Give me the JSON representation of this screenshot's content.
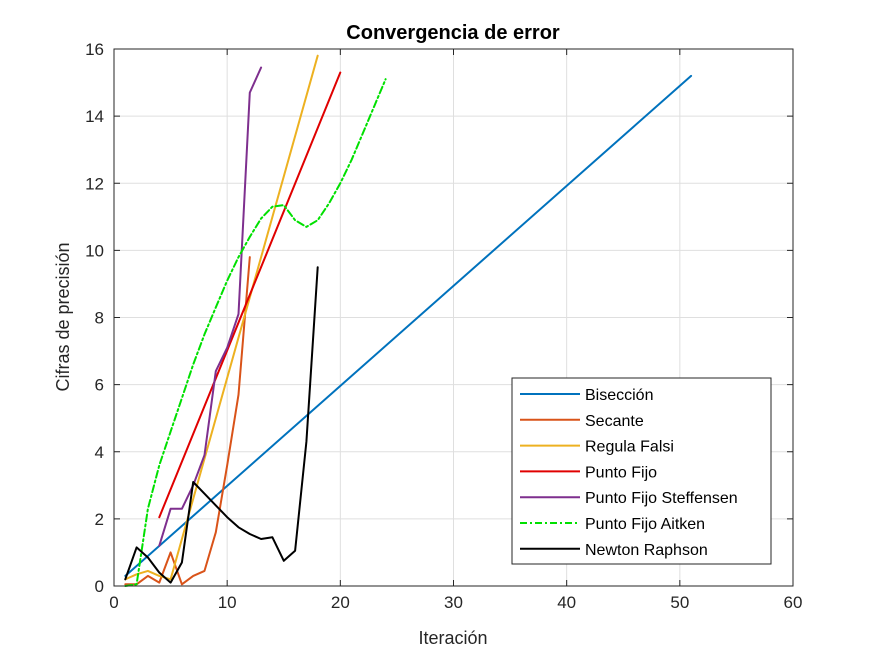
{
  "chart_data": {
    "type": "line",
    "title": "Convergencia de error",
    "xlabel": "Iteración",
    "ylabel": "Cifras de precisión",
    "xlim": [
      0,
      60
    ],
    "ylim": [
      0,
      16
    ],
    "xticks": [
      0,
      10,
      20,
      30,
      40,
      50,
      60
    ],
    "yticks": [
      0,
      2,
      4,
      6,
      8,
      10,
      12,
      14,
      16
    ],
    "grid": true,
    "legend_position": "bottom-right",
    "series": [
      {
        "name": "Bisección",
        "color": "#0072BD",
        "dash": "solid",
        "x": [
          1,
          51
        ],
        "y": [
          0.3,
          15.2
        ]
      },
      {
        "name": "Secante",
        "color": "#D95319",
        "dash": "solid",
        "x": [
          1,
          2,
          3,
          4,
          5,
          6,
          7,
          8,
          9,
          10,
          11,
          12
        ],
        "y": [
          0.05,
          0.05,
          0.3,
          0.1,
          1.0,
          0.05,
          0.3,
          0.45,
          1.6,
          3.6,
          5.7,
          9.8
        ]
      },
      {
        "name": "Regula Falsi",
        "color": "#EDB120",
        "dash": "solid",
        "x": [
          1,
          2,
          3,
          4,
          5,
          18
        ],
        "y": [
          0.2,
          0.35,
          0.45,
          0.3,
          0.2,
          15.8
        ]
      },
      {
        "name": "Punto Fijo",
        "color": "#E00000",
        "dash": "solid",
        "x": [
          4,
          20
        ],
        "y": [
          2.05,
          15.3
        ]
      },
      {
        "name": "Punto Fijo Steffensen",
        "color": "#7E2F8E",
        "dash": "solid",
        "x": [
          4,
          5,
          6,
          7,
          8,
          9,
          10,
          11,
          12,
          13
        ],
        "y": [
          1.2,
          2.3,
          2.3,
          3.0,
          3.9,
          6.4,
          7.1,
          8.1,
          14.7,
          15.45
        ]
      },
      {
        "name": "Punto Fijo Aitken",
        "color": "#00E000",
        "dash": "dashdot",
        "x": [
          1,
          2,
          3,
          4,
          5,
          6,
          7,
          8,
          9,
          10,
          11,
          12,
          13,
          14,
          15,
          16,
          17,
          18,
          19,
          20,
          21,
          22,
          23,
          24
        ],
        "y": [
          0.0,
          0.05,
          2.3,
          3.6,
          4.6,
          5.6,
          6.6,
          7.5,
          8.3,
          9.1,
          9.8,
          10.4,
          10.95,
          11.3,
          11.35,
          10.9,
          10.7,
          10.9,
          11.4,
          12.0,
          12.7,
          13.5,
          14.3,
          15.1
        ]
      },
      {
        "name": "Newton Raphson",
        "color": "#000000",
        "dash": "solid",
        "x": [
          1,
          2,
          3,
          4,
          5,
          6,
          7,
          8,
          9,
          10,
          11,
          12,
          13,
          14,
          15,
          16,
          17,
          18
        ],
        "y": [
          0.2,
          1.15,
          0.85,
          0.4,
          0.1,
          0.7,
          3.1,
          2.75,
          2.4,
          2.05,
          1.75,
          1.55,
          1.4,
          1.45,
          0.75,
          1.05,
          4.3,
          9.5
        ]
      }
    ]
  }
}
